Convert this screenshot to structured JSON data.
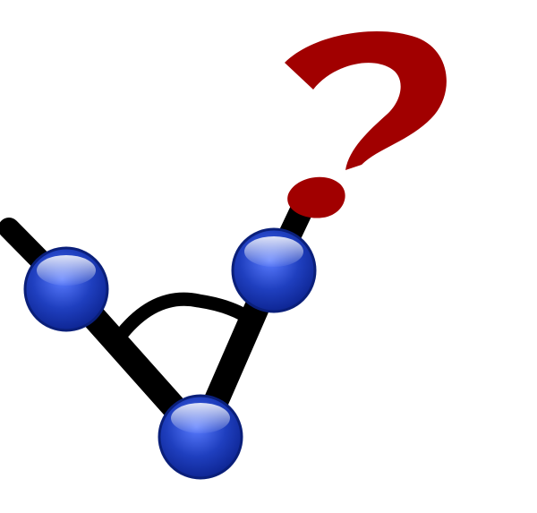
{
  "icon": "graph-angle-question-icon",
  "colors": {
    "background": "#ffffff",
    "edge": "#000000",
    "node_fill": "#1f3fbf",
    "node_highlight": "#8fb2ff",
    "node_stroke": "#0a1f7a",
    "question_mark": "#a10000"
  },
  "nodes": [
    {
      "id": "node-left"
    },
    {
      "id": "node-bottom"
    },
    {
      "id": "node-right"
    }
  ],
  "question_mark": {
    "label": "?"
  }
}
